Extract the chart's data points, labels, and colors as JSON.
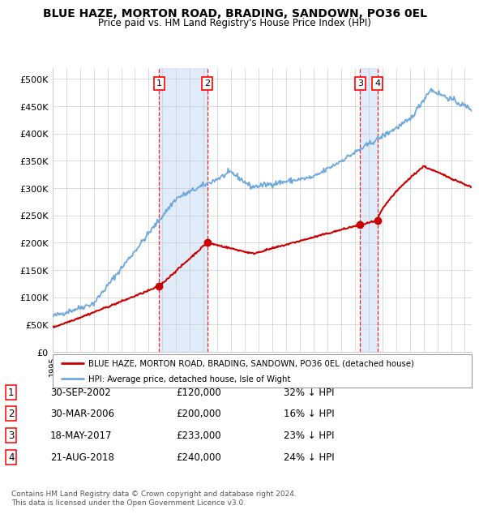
{
  "title": "BLUE HAZE, MORTON ROAD, BRADING, SANDOWN, PO36 0EL",
  "subtitle": "Price paid vs. HM Land Registry's House Price Index (HPI)",
  "ylabel_ticks": [
    "£0",
    "£50K",
    "£100K",
    "£150K",
    "£200K",
    "£250K",
    "£300K",
    "£350K",
    "£400K",
    "£450K",
    "£500K"
  ],
  "ytick_vals": [
    0,
    50000,
    100000,
    150000,
    200000,
    250000,
    300000,
    350000,
    400000,
    450000,
    500000
  ],
  "ylim": [
    0,
    520000
  ],
  "xlim_start": 1995.0,
  "xlim_end": 2025.5,
  "hpi_color": "#6fa8dc",
  "property_color": "#cc0000",
  "sale_dates": [
    2002.75,
    2006.25,
    2017.38,
    2018.65
  ],
  "sale_prices": [
    120000,
    200000,
    233000,
    240000
  ],
  "sale_labels": [
    "1",
    "2",
    "3",
    "4"
  ],
  "transaction_data": [
    [
      "1",
      "30-SEP-2002",
      "£120,000",
      "32% ↓ HPI"
    ],
    [
      "2",
      "30-MAR-2006",
      "£200,000",
      "16% ↓ HPI"
    ],
    [
      "3",
      "18-MAY-2017",
      "£233,000",
      "23% ↓ HPI"
    ],
    [
      "4",
      "21-AUG-2018",
      "£240,000",
      "24% ↓ HPI"
    ]
  ],
  "legend_entries": [
    "BLUE HAZE, MORTON ROAD, BRADING, SANDOWN, PO36 0EL (detached house)",
    "HPI: Average price, detached house, Isle of Wight"
  ],
  "footer": "Contains HM Land Registry data © Crown copyright and database right 2024.\nThis data is licensed under the Open Government Licence v3.0.",
  "grid_color": "#cccccc",
  "shade_color": "#cce0f5",
  "fig_width": 6.0,
  "fig_height": 6.2,
  "background_color": "#ffffff"
}
